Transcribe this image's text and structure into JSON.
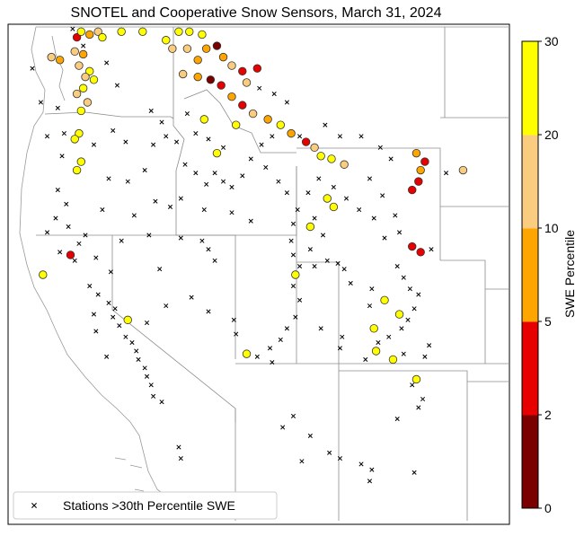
{
  "chart_data": {
    "type": "scatter",
    "title": "SNOTEL and Cooperative Snow Sensors, March 31, 2024",
    "map_region": "western United States",
    "legend": {
      "placement": "bottom-left",
      "entries": [
        {
          "marker": "x",
          "label": "Stations >30th Percentile SWE"
        }
      ]
    },
    "colorbar": {
      "label": "SWE Percentile",
      "ticks": [
        "0",
        "2",
        "5",
        "10",
        "20",
        "30"
      ],
      "bins": [
        {
          "from": 0,
          "to": 2,
          "color": "#7a0000"
        },
        {
          "from": 2,
          "to": 5,
          "color": "#e60000"
        },
        {
          "from": 5,
          "to": 10,
          "color": "#ffa500"
        },
        {
          "from": 10,
          "to": 20,
          "color": "#f9cc80"
        },
        {
          "from": 20,
          "to": 30,
          "color": "#ffff00"
        }
      ]
    },
    "colors": {
      "station_x": "#000000",
      "map_lines": "#999999",
      "state_lines": "#8c8c8c"
    },
    "circles": [
      {
        "lon": -123.0,
        "lat": 48.0,
        "bin": "10-20"
      },
      {
        "lon": -122.6,
        "lat": 47.9,
        "bin": "5-10"
      },
      {
        "lon": -121.8,
        "lat": 48.7,
        "bin": "2-5"
      },
      {
        "lon": -121.6,
        "lat": 48.9,
        "bin": "20-30"
      },
      {
        "lon": -121.2,
        "lat": 48.8,
        "bin": "5-10"
      },
      {
        "lon": -120.8,
        "lat": 48.9,
        "bin": "10-20"
      },
      {
        "lon": -120.6,
        "lat": 48.7,
        "bin": "20-30"
      },
      {
        "lon": -121.9,
        "lat": 48.2,
        "bin": "10-20"
      },
      {
        "lon": -121.5,
        "lat": 48.1,
        "bin": "5-10"
      },
      {
        "lon": -121.7,
        "lat": 47.7,
        "bin": "10-20"
      },
      {
        "lon": -121.2,
        "lat": 47.5,
        "bin": "20-30"
      },
      {
        "lon": -121.4,
        "lat": 47.3,
        "bin": "10-20"
      },
      {
        "lon": -121.0,
        "lat": 47.2,
        "bin": "20-30"
      },
      {
        "lon": -121.5,
        "lat": 46.9,
        "bin": "20-30"
      },
      {
        "lon": -121.8,
        "lat": 46.7,
        "bin": "10-20"
      },
      {
        "lon": -121.3,
        "lat": 46.4,
        "bin": "10-20"
      },
      {
        "lon": -121.6,
        "lat": 46.1,
        "bin": "20-30"
      },
      {
        "lon": -121.7,
        "lat": 45.3,
        "bin": "20-30"
      },
      {
        "lon": -121.9,
        "lat": 45.1,
        "bin": "20-30"
      },
      {
        "lon": -121.6,
        "lat": 44.3,
        "bin": "20-30"
      },
      {
        "lon": -121.8,
        "lat": 44.0,
        "bin": "20-30"
      },
      {
        "lon": -122.1,
        "lat": 41.0,
        "bin": "2-5"
      },
      {
        "lon": -123.4,
        "lat": 40.3,
        "bin": "20-30"
      },
      {
        "lon": -119.7,
        "lat": 48.9,
        "bin": "20-30"
      },
      {
        "lon": -118.7,
        "lat": 48.9,
        "bin": "20-30"
      },
      {
        "lon": -117.6,
        "lat": 48.6,
        "bin": "20-30"
      },
      {
        "lon": -117.0,
        "lat": 48.9,
        "bin": "20-30"
      },
      {
        "lon": -116.5,
        "lat": 48.9,
        "bin": "20-30"
      },
      {
        "lon": -115.9,
        "lat": 48.8,
        "bin": "20-30"
      },
      {
        "lon": -117.3,
        "lat": 48.3,
        "bin": "10-20"
      },
      {
        "lon": -116.6,
        "lat": 48.3,
        "bin": "10-20"
      },
      {
        "lon": -116.1,
        "lat": 47.9,
        "bin": "5-10"
      },
      {
        "lon": -115.7,
        "lat": 48.3,
        "bin": "5-10"
      },
      {
        "lon": -115.2,
        "lat": 48.4,
        "bin": "0-2"
      },
      {
        "lon": -114.9,
        "lat": 48.0,
        "bin": "5-10"
      },
      {
        "lon": -114.5,
        "lat": 47.7,
        "bin": "10-20"
      },
      {
        "lon": -114.0,
        "lat": 47.5,
        "bin": "2-5"
      },
      {
        "lon": -113.3,
        "lat": 47.6,
        "bin": "2-5"
      },
      {
        "lon": -116.8,
        "lat": 47.4,
        "bin": "10-20"
      },
      {
        "lon": -116.1,
        "lat": 47.3,
        "bin": "5-10"
      },
      {
        "lon": -115.5,
        "lat": 47.2,
        "bin": "0-2"
      },
      {
        "lon": -115.0,
        "lat": 47.0,
        "bin": "2-5"
      },
      {
        "lon": -114.5,
        "lat": 46.6,
        "bin": "5-10"
      },
      {
        "lon": -114.0,
        "lat": 46.3,
        "bin": "2-5"
      },
      {
        "lon": -113.5,
        "lat": 46.0,
        "bin": "10-20"
      },
      {
        "lon": -112.8,
        "lat": 45.8,
        "bin": "5-10"
      },
      {
        "lon": -112.2,
        "lat": 45.6,
        "bin": "20-30"
      },
      {
        "lon": -111.7,
        "lat": 45.3,
        "bin": "5-10"
      },
      {
        "lon": -111.0,
        "lat": 45.0,
        "bin": "2-5"
      },
      {
        "lon": -110.6,
        "lat": 44.8,
        "bin": "10-20"
      },
      {
        "lon": -110.3,
        "lat": 44.5,
        "bin": "20-30"
      },
      {
        "lon": -109.8,
        "lat": 44.4,
        "bin": "20-30"
      },
      {
        "lon": -109.2,
        "lat": 44.2,
        "bin": "10-20"
      },
      {
        "lon": -110.0,
        "lat": 43.0,
        "bin": "20-30"
      },
      {
        "lon": -109.7,
        "lat": 42.7,
        "bin": "20-30"
      },
      {
        "lon": -110.8,
        "lat": 42.0,
        "bin": "20-30"
      },
      {
        "lon": -105.8,
        "lat": 44.6,
        "bin": "5-10"
      },
      {
        "lon": -105.4,
        "lat": 44.3,
        "bin": "2-5"
      },
      {
        "lon": -105.6,
        "lat": 44.0,
        "bin": "5-10"
      },
      {
        "lon": -105.7,
        "lat": 43.6,
        "bin": "2-5"
      },
      {
        "lon": -106.0,
        "lat": 43.3,
        "bin": "2-5"
      },
      {
        "lon": -106.0,
        "lat": 41.3,
        "bin": "2-5"
      },
      {
        "lon": -105.6,
        "lat": 41.1,
        "bin": "2-5"
      },
      {
        "lon": -103.6,
        "lat": 44.0,
        "bin": "10-20"
      },
      {
        "lon": -113.8,
        "lat": 47.1,
        "bin": "10-20"
      },
      {
        "lon": -114.3,
        "lat": 45.6,
        "bin": "20-30"
      },
      {
        "lon": -115.8,
        "lat": 45.8,
        "bin": "20-30"
      },
      {
        "lon": -115.2,
        "lat": 44.6,
        "bin": "20-30"
      },
      {
        "lon": -111.5,
        "lat": 40.3,
        "bin": "20-30"
      },
      {
        "lon": -107.3,
        "lat": 39.4,
        "bin": "20-30"
      },
      {
        "lon": -106.6,
        "lat": 38.9,
        "bin": "20-30"
      },
      {
        "lon": -107.8,
        "lat": 38.4,
        "bin": "20-30"
      },
      {
        "lon": -107.7,
        "lat": 37.6,
        "bin": "20-30"
      },
      {
        "lon": -106.9,
        "lat": 37.3,
        "bin": "20-30"
      },
      {
        "lon": -105.8,
        "lat": 36.6,
        "bin": "20-30"
      },
      {
        "lon": -119.4,
        "lat": 38.7,
        "bin": "20-30"
      },
      {
        "lon": -113.8,
        "lat": 37.5,
        "bin": "20-30"
      }
    ],
    "crosses": [
      {
        "lon": -123.5,
        "lat": 46.4
      },
      {
        "lon": -123.2,
        "lat": 45.2
      },
      {
        "lon": -122.4,
        "lat": 45.3
      },
      {
        "lon": -122.5,
        "lat": 44.5
      },
      {
        "lon": -122.7,
        "lat": 43.3
      },
      {
        "lon": -122.3,
        "lat": 42.8
      },
      {
        "lon": -122.8,
        "lat": 42.3
      },
      {
        "lon": -122.2,
        "lat": 42.0
      },
      {
        "lon": -121.4,
        "lat": 41.7
      },
      {
        "lon": -121.9,
        "lat": 40.8
      },
      {
        "lon": -121.7,
        "lat": 41.4
      },
      {
        "lon": -122.6,
        "lat": 41.1
      },
      {
        "lon": -123.2,
        "lat": 41.8
      },
      {
        "lon": -121.2,
        "lat": 39.9
      },
      {
        "lon": -120.8,
        "lat": 39.6
      },
      {
        "lon": -120.3,
        "lat": 39.3
      },
      {
        "lon": -120.0,
        "lat": 39.1
      },
      {
        "lon": -120.1,
        "lat": 38.8
      },
      {
        "lon": -119.8,
        "lat": 38.5
      },
      {
        "lon": -119.5,
        "lat": 38.1
      },
      {
        "lon": -119.2,
        "lat": 37.9
      },
      {
        "lon": -119.0,
        "lat": 37.6
      },
      {
        "lon": -118.9,
        "lat": 37.3
      },
      {
        "lon": -118.6,
        "lat": 37.0
      },
      {
        "lon": -118.5,
        "lat": 36.7
      },
      {
        "lon": -118.3,
        "lat": 36.4
      },
      {
        "lon": -118.2,
        "lat": 36.0
      },
      {
        "lon": -117.8,
        "lat": 35.8
      },
      {
        "lon": -117.0,
        "lat": 34.2
      },
      {
        "lon": -116.9,
        "lat": 33.8
      },
      {
        "lon": -120.4,
        "lat": 37.4
      },
      {
        "lon": -120.9,
        "lat": 38.3
      },
      {
        "lon": -121.0,
        "lat": 38.9
      },
      {
        "lon": -120.2,
        "lat": 40.4
      },
      {
        "lon": -120.9,
        "lat": 40.9
      },
      {
        "lon": -119.7,
        "lat": 41.5
      },
      {
        "lon": -118.4,
        "lat": 41.7
      },
      {
        "lon": -116.9,
        "lat": 41.6
      },
      {
        "lon": -115.9,
        "lat": 41.5
      },
      {
        "lon": -115.6,
        "lat": 41.2
      },
      {
        "lon": -115.3,
        "lat": 40.8
      },
      {
        "lon": -116.4,
        "lat": 39.5
      },
      {
        "lon": -115.6,
        "lat": 39.0
      },
      {
        "lon": -117.6,
        "lat": 39.2
      },
      {
        "lon": -114.4,
        "lat": 38.7
      },
      {
        "lon": -114.3,
        "lat": 38.2
      },
      {
        "lon": -118.5,
        "lat": 38.6
      },
      {
        "lon": -117.9,
        "lat": 40.5
      },
      {
        "lon": -120.3,
        "lat": 43.7
      },
      {
        "lon": -119.4,
        "lat": 43.6
      },
      {
        "lon": -118.6,
        "lat": 44.0
      },
      {
        "lon": -118.2,
        "lat": 44.9
      },
      {
        "lon": -117.6,
        "lat": 45.2
      },
      {
        "lon": -117.1,
        "lat": 45.0
      },
      {
        "lon": -116.7,
        "lat": 44.2
      },
      {
        "lon": -116.2,
        "lat": 43.9
      },
      {
        "lon": -115.7,
        "lat": 43.5
      },
      {
        "lon": -115.3,
        "lat": 43.9
      },
      {
        "lon": -114.9,
        "lat": 43.6
      },
      {
        "lon": -114.5,
        "lat": 43.4
      },
      {
        "lon": -114.0,
        "lat": 43.8
      },
      {
        "lon": -113.6,
        "lat": 44.4
      },
      {
        "lon": -112.9,
        "lat": 44.1
      },
      {
        "lon": -112.3,
        "lat": 43.6
      },
      {
        "lon": -111.9,
        "lat": 43.2
      },
      {
        "lon": -111.4,
        "lat": 42.6
      },
      {
        "lon": -111.6,
        "lat": 42.1
      },
      {
        "lon": -111.7,
        "lat": 41.5
      },
      {
        "lon": -111.6,
        "lat": 41.0
      },
      {
        "lon": -111.3,
        "lat": 40.6
      },
      {
        "lon": -111.6,
        "lat": 39.9
      },
      {
        "lon": -111.3,
        "lat": 39.4
      },
      {
        "lon": -111.5,
        "lat": 38.8
      },
      {
        "lon": -111.9,
        "lat": 38.4
      },
      {
        "lon": -112.2,
        "lat": 38.0
      },
      {
        "lon": -112.7,
        "lat": 37.7
      },
      {
        "lon": -113.3,
        "lat": 37.4
      },
      {
        "lon": -112.6,
        "lat": 37.2
      },
      {
        "lon": -110.6,
        "lat": 40.6
      },
      {
        "lon": -110.0,
        "lat": 40.8
      },
      {
        "lon": -109.5,
        "lat": 40.7
      },
      {
        "lon": -110.3,
        "lat": 38.4
      },
      {
        "lon": -109.3,
        "lat": 38.1
      },
      {
        "lon": -109.4,
        "lat": 37.7
      },
      {
        "lon": -110.8,
        "lat": 41.2
      },
      {
        "lon": -110.2,
        "lat": 41.7
      },
      {
        "lon": -110.6,
        "lat": 42.3
      },
      {
        "lon": -110.9,
        "lat": 43.2
      },
      {
        "lon": -110.4,
        "lat": 43.7
      },
      {
        "lon": -109.7,
        "lat": 43.4
      },
      {
        "lon": -109.1,
        "lat": 43.0
      },
      {
        "lon": -108.5,
        "lat": 42.6
      },
      {
        "lon": -107.8,
        "lat": 42.3
      },
      {
        "lon": -107.3,
        "lat": 41.6
      },
      {
        "lon": -106.6,
        "lat": 41.8
      },
      {
        "lon": -107.0,
        "lat": 44.4
      },
      {
        "lon": -107.5,
        "lat": 44.8
      },
      {
        "lon": -108.4,
        "lat": 45.2
      },
      {
        "lon": -109.4,
        "lat": 45.2
      },
      {
        "lon": -110.1,
        "lat": 45.6
      },
      {
        "lon": -111.3,
        "lat": 45.2
      },
      {
        "lon": -111.9,
        "lat": 46.4
      },
      {
        "lon": -112.5,
        "lat": 46.7
      },
      {
        "lon": -113.2,
        "lat": 46.9
      },
      {
        "lon": -106.7,
        "lat": 40.6
      },
      {
        "lon": -106.4,
        "lat": 40.2
      },
      {
        "lon": -106.1,
        "lat": 39.8
      },
      {
        "lon": -105.7,
        "lat": 39.6
      },
      {
        "lon": -105.9,
        "lat": 39.1
      },
      {
        "lon": -106.2,
        "lat": 38.7
      },
      {
        "lon": -106.5,
        "lat": 38.4
      },
      {
        "lon": -107.1,
        "lat": 38.1
      },
      {
        "lon": -107.6,
        "lat": 37.9
      },
      {
        "lon": -106.4,
        "lat": 37.5
      },
      {
        "lon": -105.4,
        "lat": 37.4
      },
      {
        "lon": -105.2,
        "lat": 37.8
      },
      {
        "lon": -106.0,
        "lat": 36.4
      },
      {
        "lon": -105.5,
        "lat": 35.9
      },
      {
        "lon": -105.7,
        "lat": 35.6
      },
      {
        "lon": -108.0,
        "lat": 39.2
      },
      {
        "lon": -107.9,
        "lat": 39.8
      },
      {
        "lon": -108.2,
        "lat": 37.3
      },
      {
        "lon": -111.6,
        "lat": 35.3
      },
      {
        "lon": -110.8,
        "lat": 34.6
      },
      {
        "lon": -109.9,
        "lat": 34.0
      },
      {
        "lon": -109.4,
        "lat": 33.8
      },
      {
        "lon": -108.4,
        "lat": 33.6
      },
      {
        "lon": -107.9,
        "lat": 33.4
      },
      {
        "lon": -108.0,
        "lat": 33.0
      },
      {
        "lon": -105.9,
        "lat": 33.3
      },
      {
        "lon": -106.7,
        "lat": 35.2
      },
      {
        "lon": -112.1,
        "lat": 34.9
      },
      {
        "lon": -111.2,
        "lat": 33.7
      },
      {
        "lon": -109.2,
        "lat": 40.5
      },
      {
        "lon": -108.9,
        "lat": 40.0
      },
      {
        "lon": -105.1,
        "lat": 41.2
      },
      {
        "lon": -104.4,
        "lat": 43.9
      },
      {
        "lon": -106.8,
        "lat": 42.4
      },
      {
        "lon": -107.4,
        "lat": 43.1
      },
      {
        "lon": -108.0,
        "lat": 43.7
      },
      {
        "lon": -114.9,
        "lat": 44.8
      },
      {
        "lon": -116.2,
        "lat": 45.3
      },
      {
        "lon": -117.8,
        "lat": 45.7
      },
      {
        "lon": -116.6,
        "lat": 46.0
      },
      {
        "lon": -118.3,
        "lat": 46.1
      },
      {
        "lon": -115.6,
        "lat": 45.1
      },
      {
        "lon": -113.1,
        "lat": 44.9
      },
      {
        "lon": -112.6,
        "lat": 45.2
      },
      {
        "lon": -113.6,
        "lat": 42.2
      },
      {
        "lon": -114.5,
        "lat": 42.5
      },
      {
        "lon": -115.8,
        "lat": 42.6
      },
      {
        "lon": -116.9,
        "lat": 43.0
      },
      {
        "lon": -117.4,
        "lat": 42.7
      },
      {
        "lon": -118.1,
        "lat": 42.9
      },
      {
        "lon": -119.1,
        "lat": 42.4
      },
      {
        "lon": -120.6,
        "lat": 42.6
      },
      {
        "lon": -121.0,
        "lat": 44.9
      },
      {
        "lon": -120.1,
        "lat": 45.4
      },
      {
        "lon": -119.5,
        "lat": 45.0
      },
      {
        "lon": -121.5,
        "lat": 48.4
      },
      {
        "lon": -120.4,
        "lat": 47.8
      },
      {
        "lon": -123.9,
        "lat": 47.6
      },
      {
        "lon": -122.0,
        "lat": 49.0
      },
      {
        "lon": -119.9,
        "lat": 47.0
      },
      {
        "lon": -122.7,
        "lat": 46.2
      }
    ]
  }
}
